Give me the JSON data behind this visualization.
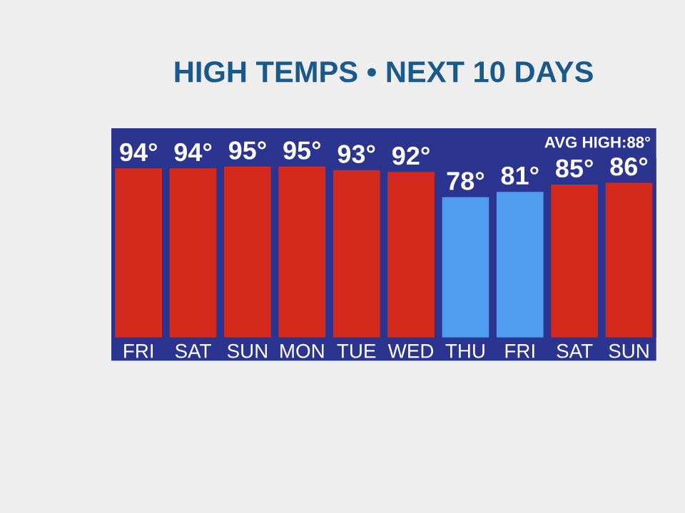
{
  "chart_data": {
    "type": "bar",
    "title": "HIGH TEMPS • NEXT 10 DAYS",
    "categories": [
      "FRI",
      "SAT",
      "SUN",
      "MON",
      "TUE",
      "WED",
      "THU",
      "FRI",
      "SAT",
      "SUN"
    ],
    "values": [
      94,
      94,
      95,
      95,
      93,
      92,
      78,
      81,
      85,
      86
    ],
    "colors": [
      "#d42a1e",
      "#d42a1e",
      "#d42a1e",
      "#d42a1e",
      "#d42a1e",
      "#d42a1e",
      "#4f9cf0",
      "#4f9cf0",
      "#d42a1e",
      "#d42a1e"
    ],
    "value_labels": [
      "94°",
      "94°",
      "95°",
      "95°",
      "93°",
      "92°",
      "78°",
      "81°",
      "85°",
      "86°"
    ],
    "tick_labels": "x",
    "grid": false,
    "annotations": [
      "AVG HIGH:88°"
    ]
  }
}
